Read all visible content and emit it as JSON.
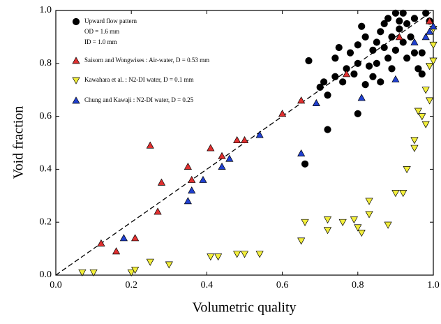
{
  "chart_data": {
    "type": "scatter",
    "x_label": "Volumetric quality",
    "y_label": "Void fraction",
    "xlim": [
      0,
      1
    ],
    "ylim": [
      0,
      1
    ],
    "xticks": [
      {
        "value": 0,
        "label": "0.0"
      },
      {
        "value": 0.2,
        "label": "0.2"
      },
      {
        "value": 0.4,
        "label": "0.4"
      },
      {
        "value": 0.6,
        "label": "0.6"
      },
      {
        "value": 0.8,
        "label": "0.8"
      },
      {
        "value": 1,
        "label": "1.0"
      }
    ],
    "yticks": [
      {
        "value": 0,
        "label": "0.0"
      },
      {
        "value": 0.2,
        "label": "0.2"
      },
      {
        "value": 0.4,
        "label": "0.4"
      },
      {
        "value": 0.6,
        "label": "0.6"
      },
      {
        "value": 0.8,
        "label": "0.8"
      },
      {
        "value": 1,
        "label": "1.0"
      }
    ],
    "annotations": [
      "OD = 1.6 mm",
      "ID  = 1.0 mm"
    ],
    "series": [
      {
        "name": "Upward flow pattern",
        "color": "#000000",
        "marker": "circle",
        "x": [
          0.67,
          0.66,
          0.72,
          0.8,
          0.7,
          0.71,
          0.72,
          0.74,
          0.74,
          0.75,
          0.76,
          0.77,
          0.78,
          0.79,
          0.8,
          0.8,
          0.81,
          0.82,
          0.82,
          0.83,
          0.84,
          0.84,
          0.85,
          0.85,
          0.86,
          0.86,
          0.87,
          0.87,
          0.88,
          0.88,
          0.89,
          0.89,
          0.9,
          0.9,
          0.91,
          0.91,
          0.92,
          0.92,
          0.93,
          0.93,
          0.94,
          0.95,
          0.95,
          0.96,
          0.97,
          0.97,
          0.98,
          0.99
        ],
        "values": [
          0.81,
          0.42,
          0.55,
          0.61,
          0.71,
          0.73,
          0.68,
          0.75,
          0.82,
          0.86,
          0.73,
          0.78,
          0.84,
          0.76,
          0.87,
          0.8,
          0.94,
          0.72,
          0.9,
          0.79,
          0.75,
          0.85,
          0.8,
          0.88,
          0.92,
          0.73,
          0.86,
          0.95,
          0.82,
          0.97,
          0.9,
          0.78,
          0.99,
          0.85,
          0.93,
          0.96,
          0.99,
          0.88,
          0.95,
          0.82,
          0.9,
          0.97,
          0.84,
          0.78,
          0.76,
          0.84,
          0.99,
          0.96
        ]
      },
      {
        "name": "Saisorn and Wongwises : Air-water, D = 0.53 mm",
        "color": "#e03030",
        "marker": "triangle-up",
        "x": [
          0.12,
          0.16,
          0.21,
          0.25,
          0.27,
          0.28,
          0.35,
          0.36,
          0.41,
          0.44,
          0.48,
          0.5,
          0.6,
          0.65,
          0.77,
          0.91,
          0.99
        ],
        "values": [
          0.12,
          0.09,
          0.14,
          0.49,
          0.24,
          0.35,
          0.41,
          0.36,
          0.48,
          0.45,
          0.51,
          0.51,
          0.61,
          0.66,
          0.76,
          0.9,
          0.96
        ]
      },
      {
        "name": "Kawahara et al. : N2-DI water, D = 0.1 mm",
        "color": "#f2ee3a",
        "marker": "triangle-down",
        "x": [
          0.07,
          0.1,
          0.2,
          0.21,
          0.25,
          0.3,
          0.41,
          0.43,
          0.48,
          0.5,
          0.54,
          0.65,
          0.66,
          0.72,
          0.72,
          0.76,
          0.79,
          0.8,
          0.81,
          0.83,
          0.83,
          0.88,
          0.9,
          0.92,
          0.93,
          0.95,
          0.95,
          0.96,
          0.97,
          0.98,
          0.98,
          0.99,
          0.99,
          1.0,
          1.0,
          1.0
        ],
        "values": [
          0.01,
          0.01,
          0.01,
          0.02,
          0.05,
          0.04,
          0.07,
          0.07,
          0.08,
          0.08,
          0.08,
          0.13,
          0.2,
          0.17,
          0.21,
          0.2,
          0.21,
          0.18,
          0.16,
          0.23,
          0.28,
          0.19,
          0.31,
          0.31,
          0.4,
          0.48,
          0.51,
          0.62,
          0.6,
          0.57,
          0.7,
          0.79,
          0.66,
          0.81,
          0.87,
          0.93
        ]
      },
      {
        "name": "Chung and Kawaji : N2-DI water, D = 0.25",
        "color": "#2040d0",
        "marker": "triangle-up",
        "x": [
          0.18,
          0.35,
          0.36,
          0.39,
          0.44,
          0.46,
          0.54,
          0.65,
          0.69,
          0.81,
          0.9,
          0.95,
          0.98,
          0.99,
          1.0
        ],
        "values": [
          0.14,
          0.28,
          0.32,
          0.36,
          0.41,
          0.44,
          0.53,
          0.46,
          0.65,
          0.67,
          0.74,
          0.88,
          0.9,
          0.92,
          0.94
        ]
      }
    ]
  }
}
